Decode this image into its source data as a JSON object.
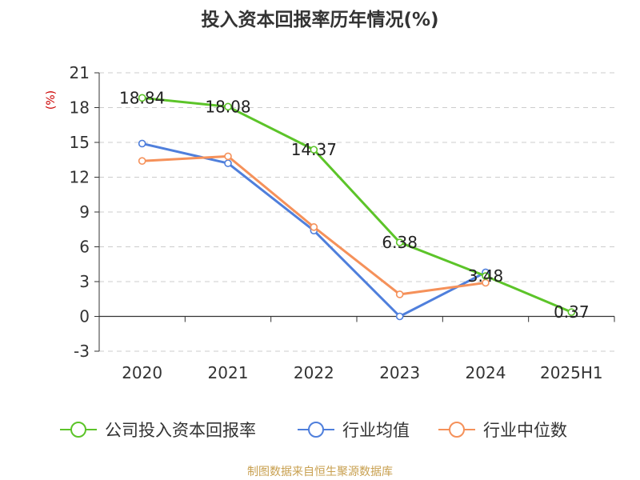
{
  "chart_data": {
    "type": "line",
    "title": "投入资本回报率历年情况(%)",
    "ylabel": "(%)",
    "xlabel": "",
    "categories": [
      "2020",
      "2021",
      "2022",
      "2023",
      "2024",
      "2025H1"
    ],
    "ylim": [
      -3,
      21
    ],
    "yticks": [
      "21",
      "18",
      "15",
      "12",
      "9",
      "6",
      "3",
      "0",
      "-3"
    ],
    "grid": true,
    "legend_position": "bottom",
    "series": [
      {
        "name": "公司投入资本回报率",
        "color": "#5cc429",
        "values": [
          18.84,
          18.08,
          14.37,
          6.38,
          3.48,
          0.37
        ],
        "labels": [
          "18.84",
          "18.08",
          "14.37",
          "6.38",
          "3.48",
          "0.37"
        ]
      },
      {
        "name": "行业均值",
        "color": "#4f7fdc",
        "values": [
          14.9,
          13.2,
          7.4,
          0.0,
          3.8,
          null
        ]
      },
      {
        "name": "行业中位数",
        "color": "#f5915a",
        "values": [
          13.4,
          13.8,
          7.7,
          1.9,
          2.9,
          null
        ]
      }
    ],
    "source": "制图数据来自恒生聚源数据库"
  }
}
